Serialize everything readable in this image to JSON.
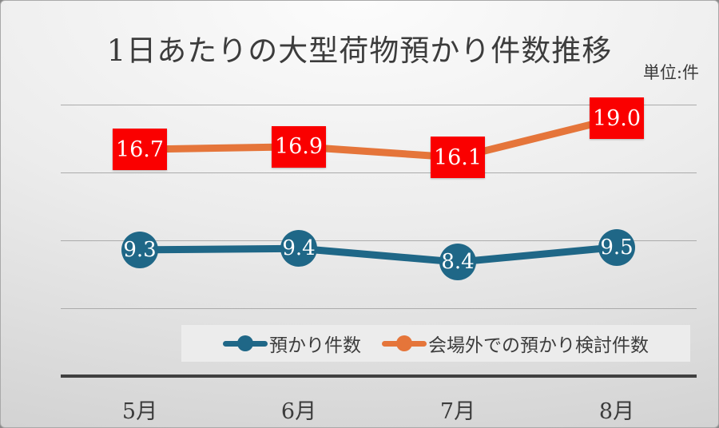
{
  "chart_data": {
    "type": "line",
    "title": "1日あたりの大型荷物預かり件数推移",
    "unit_label": "単位:件",
    "categories": [
      "5月",
      "6月",
      "7月",
      "8月"
    ],
    "series": [
      {
        "name": "預かり件数",
        "values": [
          9.3,
          9.4,
          8.4,
          9.5
        ],
        "color": "#1f6787",
        "marker": "filled-circle",
        "label_text_color": "#ffffff"
      },
      {
        "name": "会場外での預かり検討件数",
        "values": [
          16.7,
          16.9,
          16.1,
          19.0
        ],
        "color": "#e5753a",
        "marker": "red-box-label",
        "label_bg": "#fa0000",
        "label_text_color": "#ffffff"
      }
    ],
    "ylim": [
      0,
      20
    ],
    "gridline_values": [
      5,
      10,
      15,
      20
    ],
    "grid": true,
    "legend_position": "bottom",
    "colors": {
      "grid": "#ababab",
      "axis": "#404040",
      "text": "#3c3c3c",
      "legend_bg": "#ececec"
    }
  }
}
